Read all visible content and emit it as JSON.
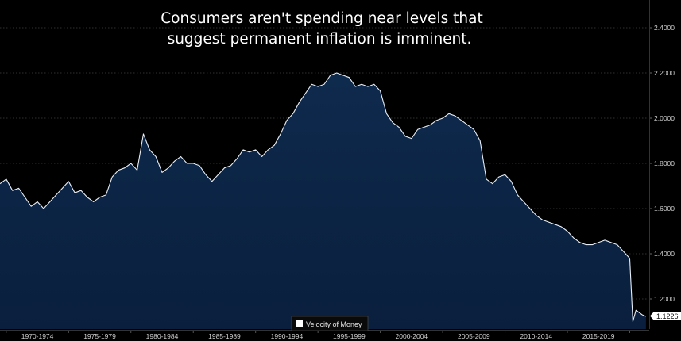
{
  "chart_data": {
    "type": "area",
    "title": [
      "Consumers aren't spending near levels that",
      "suggest permanent inflation is imminent."
    ],
    "xlabel": "",
    "ylabel": "",
    "series": [
      {
        "name": "Velocity of Money",
        "legend_label": "Velocity of Money"
      }
    ],
    "x_tick_labels": [
      "1970-1974",
      "1975-1979",
      "1980-1984",
      "1985-1989",
      "1990-1994",
      "1995-1999",
      "2000-2004",
      "2005-2009",
      "2010-2014",
      "2015-2019"
    ],
    "y_ticks": [
      1.2,
      1.4,
      1.6,
      1.8,
      2.0,
      2.2,
      2.4
    ],
    "y_tick_labels": [
      "1.2000",
      "1.4000",
      "1.6000",
      "1.8000",
      "2.0000",
      "2.2000",
      "2.4000"
    ],
    "ylim": [
      1.08,
      2.5
    ],
    "xlim": [
      1969.5,
      2021.5
    ],
    "grid": true,
    "legend_position": "bottom-center",
    "last_value_label": "1.1226",
    "x": [
      1969.5,
      1970.0,
      1970.5,
      1971.0,
      1971.5,
      1972.0,
      1972.5,
      1973.0,
      1973.5,
      1974.0,
      1974.5,
      1975.0,
      1975.5,
      1976.0,
      1976.5,
      1977.0,
      1977.5,
      1978.0,
      1978.5,
      1979.0,
      1979.5,
      1980.0,
      1980.5,
      1981.0,
      1981.5,
      1982.0,
      1982.5,
      1983.0,
      1983.5,
      1984.0,
      1984.5,
      1985.0,
      1985.5,
      1986.0,
      1986.5,
      1987.0,
      1987.5,
      1988.0,
      1988.5,
      1989.0,
      1989.5,
      1990.0,
      1990.5,
      1991.0,
      1991.5,
      1992.0,
      1992.5,
      1993.0,
      1993.5,
      1994.0,
      1994.5,
      1995.0,
      1995.5,
      1996.0,
      1996.5,
      1997.0,
      1997.5,
      1998.0,
      1998.5,
      1999.0,
      1999.5,
      2000.0,
      2000.5,
      2001.0,
      2001.5,
      2002.0,
      2002.5,
      2003.0,
      2003.5,
      2004.0,
      2004.5,
      2005.0,
      2005.5,
      2006.0,
      2006.5,
      2007.0,
      2007.5,
      2008.0,
      2008.5,
      2009.0,
      2009.5,
      2010.0,
      2010.5,
      2011.0,
      2011.5,
      2012.0,
      2012.5,
      2013.0,
      2013.5,
      2014.0,
      2014.5,
      2015.0,
      2015.5,
      2016.0,
      2016.5,
      2017.0,
      2017.5,
      2018.0,
      2018.5,
      2019.0,
      2019.5,
      2020.0,
      2020.25,
      2020.5,
      2021.0,
      2021.3
    ],
    "values": [
      1.71,
      1.73,
      1.68,
      1.69,
      1.65,
      1.61,
      1.63,
      1.6,
      1.63,
      1.66,
      1.69,
      1.72,
      1.67,
      1.68,
      1.65,
      1.63,
      1.65,
      1.66,
      1.74,
      1.77,
      1.78,
      1.8,
      1.77,
      1.93,
      1.86,
      1.83,
      1.76,
      1.78,
      1.81,
      1.83,
      1.8,
      1.8,
      1.79,
      1.75,
      1.72,
      1.75,
      1.78,
      1.79,
      1.82,
      1.86,
      1.85,
      1.86,
      1.83,
      1.86,
      1.88,
      1.93,
      1.99,
      2.02,
      2.07,
      2.11,
      2.15,
      2.14,
      2.15,
      2.19,
      2.2,
      2.19,
      2.18,
      2.14,
      2.15,
      2.14,
      2.15,
      2.12,
      2.02,
      1.98,
      1.96,
      1.92,
      1.91,
      1.95,
      1.96,
      1.97,
      1.99,
      2.0,
      2.02,
      2.01,
      1.99,
      1.97,
      1.95,
      1.9,
      1.73,
      1.71,
      1.74,
      1.75,
      1.72,
      1.66,
      1.63,
      1.6,
      1.57,
      1.55,
      1.54,
      1.53,
      1.52,
      1.5,
      1.47,
      1.45,
      1.44,
      1.44,
      1.45,
      1.46,
      1.45,
      1.44,
      1.41,
      1.38,
      1.1,
      1.15,
      1.13,
      1.1226
    ]
  }
}
